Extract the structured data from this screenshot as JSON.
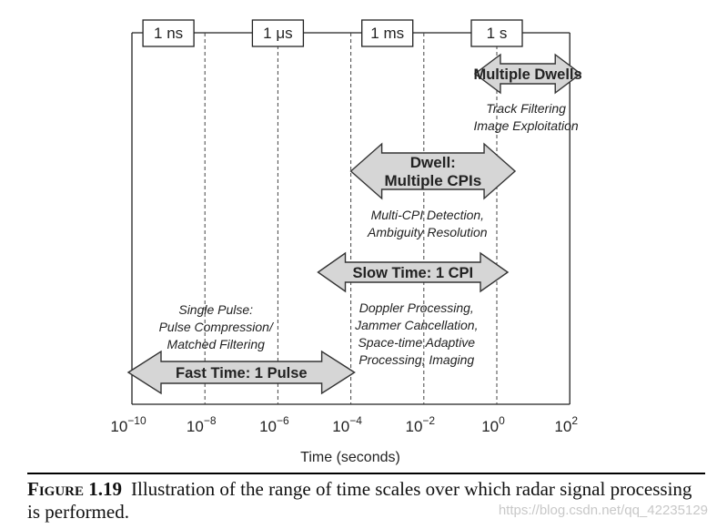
{
  "unit_boxes": [
    {
      "label": "1 ns",
      "exponent": -9
    },
    {
      "label": "1 μs",
      "exponent": -6
    },
    {
      "label": "1 ms",
      "exponent": -3
    },
    {
      "label": "1 s",
      "exponent": 0
    }
  ],
  "ticks": [
    {
      "base": "10",
      "exp": "−10",
      "value": -10
    },
    {
      "base": "10",
      "exp": "−8",
      "value": -8
    },
    {
      "base": "10",
      "exp": "−6",
      "value": -6
    },
    {
      "base": "10",
      "exp": "−4",
      "value": -4
    },
    {
      "base": "10",
      "exp": "−2",
      "value": -2
    },
    {
      "base": "10",
      "exp": "0",
      "value": 0
    },
    {
      "base": "10",
      "exp": "2",
      "value": 2
    }
  ],
  "x_axis_label": "Time (seconds)",
  "arrows": [
    {
      "id": "multiple-dwells",
      "lines": [
        "Multiple Dwells"
      ],
      "from": -0.6,
      "to": 2.3,
      "desc": [
        "Track Filtering",
        "Image Exploitation"
      ]
    },
    {
      "id": "dwell",
      "lines": [
        "Dwell:",
        "Multiple CPIs"
      ],
      "from": -4.0,
      "to": 0.5,
      "desc": [
        "Multi-CPI Detection,",
        "Ambiguity Resolution"
      ]
    },
    {
      "id": "slow-time",
      "lines": [
        "Slow Time: 1 CPI"
      ],
      "from": -4.9,
      "to": 0.3,
      "desc": [
        "Doppler Processing,",
        "Jammer Cancellation,",
        "Space-time Adaptive",
        "Processing, Imaging"
      ]
    },
    {
      "id": "fast-time",
      "lines": [
        "Fast Time: 1 Pulse"
      ],
      "from": -10.1,
      "to": -3.9,
      "desc": []
    }
  ],
  "single_pulse_text": [
    "Single Pulse:",
    "Pulse Compression/",
    "Matched Filtering"
  ],
  "caption": {
    "label": "Figure 1.19",
    "text": "Illustration of the range of time scales over which radar signal processing is performed."
  },
  "watermark": "https://blog.csdn.net/qq_42235129",
  "colors": {
    "arrow_fill": "#d6d6d6",
    "line": "#222222",
    "dash": "#444444"
  }
}
